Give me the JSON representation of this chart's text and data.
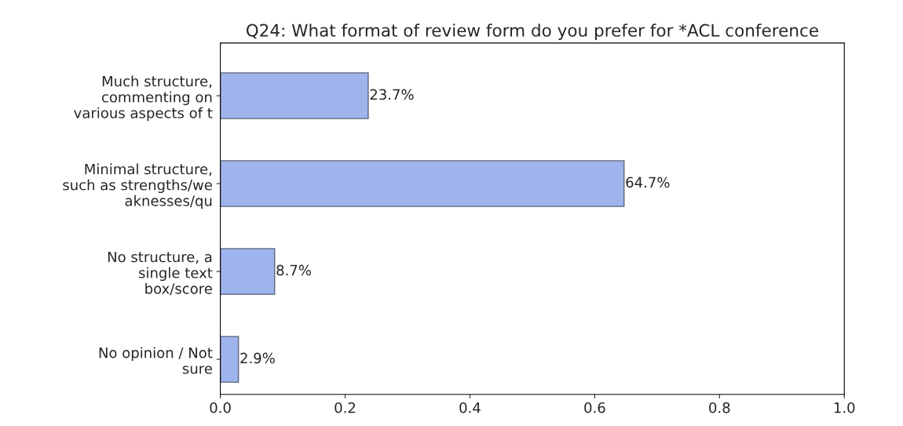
{
  "chart_data": {
    "type": "bar",
    "orientation": "horizontal",
    "title": "Q24: What format of review form do you prefer for *ACL conference",
    "categories": [
      "Much structure,\ncommenting on\nvarious aspects of t",
      "Minimal structure,\nsuch as strengths/we\naknesses/qu",
      "No structure, a\nsingle text\nbox/score",
      "No opinion / Not\nsure"
    ],
    "values": [
      0.237,
      0.647,
      0.087,
      0.029
    ],
    "value_labels": [
      "23.7%",
      "64.7%",
      "8.7%",
      "2.9%"
    ],
    "color": "#9fb3ec",
    "xlim": [
      0,
      1
    ],
    "xticks": [
      {
        "value": 0,
        "label": "0.0"
      },
      0.2,
      0.4,
      0.6,
      0.8,
      {
        "value": 1,
        "label": "1.0"
      }
    ],
    "grid": false,
    "legend": false
  }
}
